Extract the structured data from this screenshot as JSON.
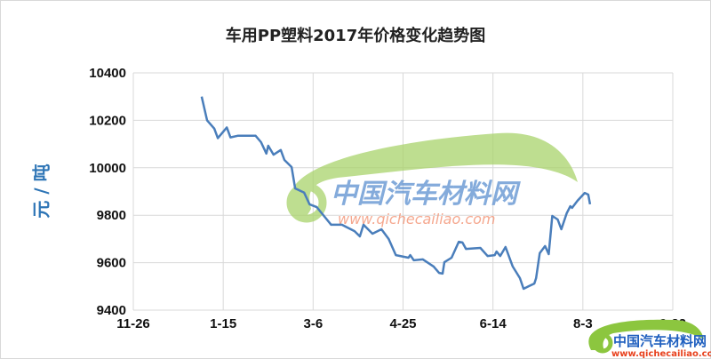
{
  "chart_data": {
    "type": "line",
    "title": "车用PP塑料2017年价格变化趋势图",
    "xlabel": "",
    "ylabel": "元 / 吨",
    "xlim": [
      "2016-11-26",
      "2017-09-22"
    ],
    "ylim": [
      9400,
      10400
    ],
    "x_tick_labels": [
      "11-26",
      "1-15",
      "3-6",
      "4-25",
      "6-14",
      "8-3",
      "9-22"
    ],
    "x_ticks": [
      "2016-11-26",
      "2017-01-15",
      "2017-03-06",
      "2017-04-25",
      "2017-06-14",
      "2017-08-03",
      "2017-09-22"
    ],
    "y_ticks": [
      9400,
      9600,
      9800,
      10000,
      10200,
      10400
    ],
    "grid": true,
    "legend": "none",
    "line_color": "#4a7ebb",
    "series": [
      {
        "x": [
          "2017-01-03",
          "2017-01-06",
          "2017-01-10",
          "2017-01-12",
          "2017-01-17",
          "2017-01-19",
          "2017-01-23",
          "2017-02-02",
          "2017-02-05",
          "2017-02-08",
          "2017-02-09",
          "2017-02-12",
          "2017-02-16",
          "2017-02-18",
          "2017-02-22",
          "2017-02-24",
          "2017-03-01",
          "2017-03-04",
          "2017-03-08",
          "2017-03-12",
          "2017-03-16",
          "2017-03-22",
          "2017-03-24",
          "2017-03-29",
          "2017-04-01",
          "2017-04-03",
          "2017-04-08",
          "2017-04-13",
          "2017-04-17",
          "2017-04-21",
          "2017-04-28",
          "2017-04-29",
          "2017-05-01",
          "2017-05-06",
          "2017-05-12",
          "2017-05-15",
          "2017-05-17",
          "2017-05-18",
          "2017-05-22",
          "2017-05-26",
          "2017-05-28",
          "2017-05-30",
          "2017-06-07",
          "2017-06-11",
          "2017-06-15",
          "2017-06-16",
          "2017-06-18",
          "2017-06-21",
          "2017-06-25",
          "2017-06-29",
          "2017-07-01",
          "2017-07-04",
          "2017-07-07",
          "2017-07-08",
          "2017-07-10",
          "2017-07-13",
          "2017-07-15",
          "2017-07-17",
          "2017-07-20",
          "2017-07-22",
          "2017-07-25",
          "2017-07-27",
          "2017-07-28",
          "2017-07-31",
          "2017-08-04",
          "2017-08-06",
          "2017-08-07"
        ],
        "values": [
          10300,
          10200,
          10165,
          10125,
          10170,
          10128,
          10135,
          10135,
          10108,
          10060,
          10093,
          10055,
          10075,
          10033,
          10003,
          9913,
          9895,
          9846,
          9834,
          9797,
          9760,
          9760,
          9752,
          9733,
          9711,
          9760,
          9722,
          9741,
          9700,
          9632,
          9621,
          9632,
          9610,
          9614,
          9584,
          9557,
          9554,
          9602,
          9621,
          9688,
          9685,
          9658,
          9662,
          9628,
          9632,
          9647,
          9628,
          9666,
          9584,
          9535,
          9490,
          9501,
          9512,
          9535,
          9640,
          9670,
          9636,
          9797,
          9782,
          9741,
          9808,
          9838,
          9831,
          9861,
          9894,
          9887,
          9846
        ]
      }
    ]
  },
  "watermark": {
    "name": "中国汽车材料网",
    "url": "www.qichecailiao.com"
  }
}
